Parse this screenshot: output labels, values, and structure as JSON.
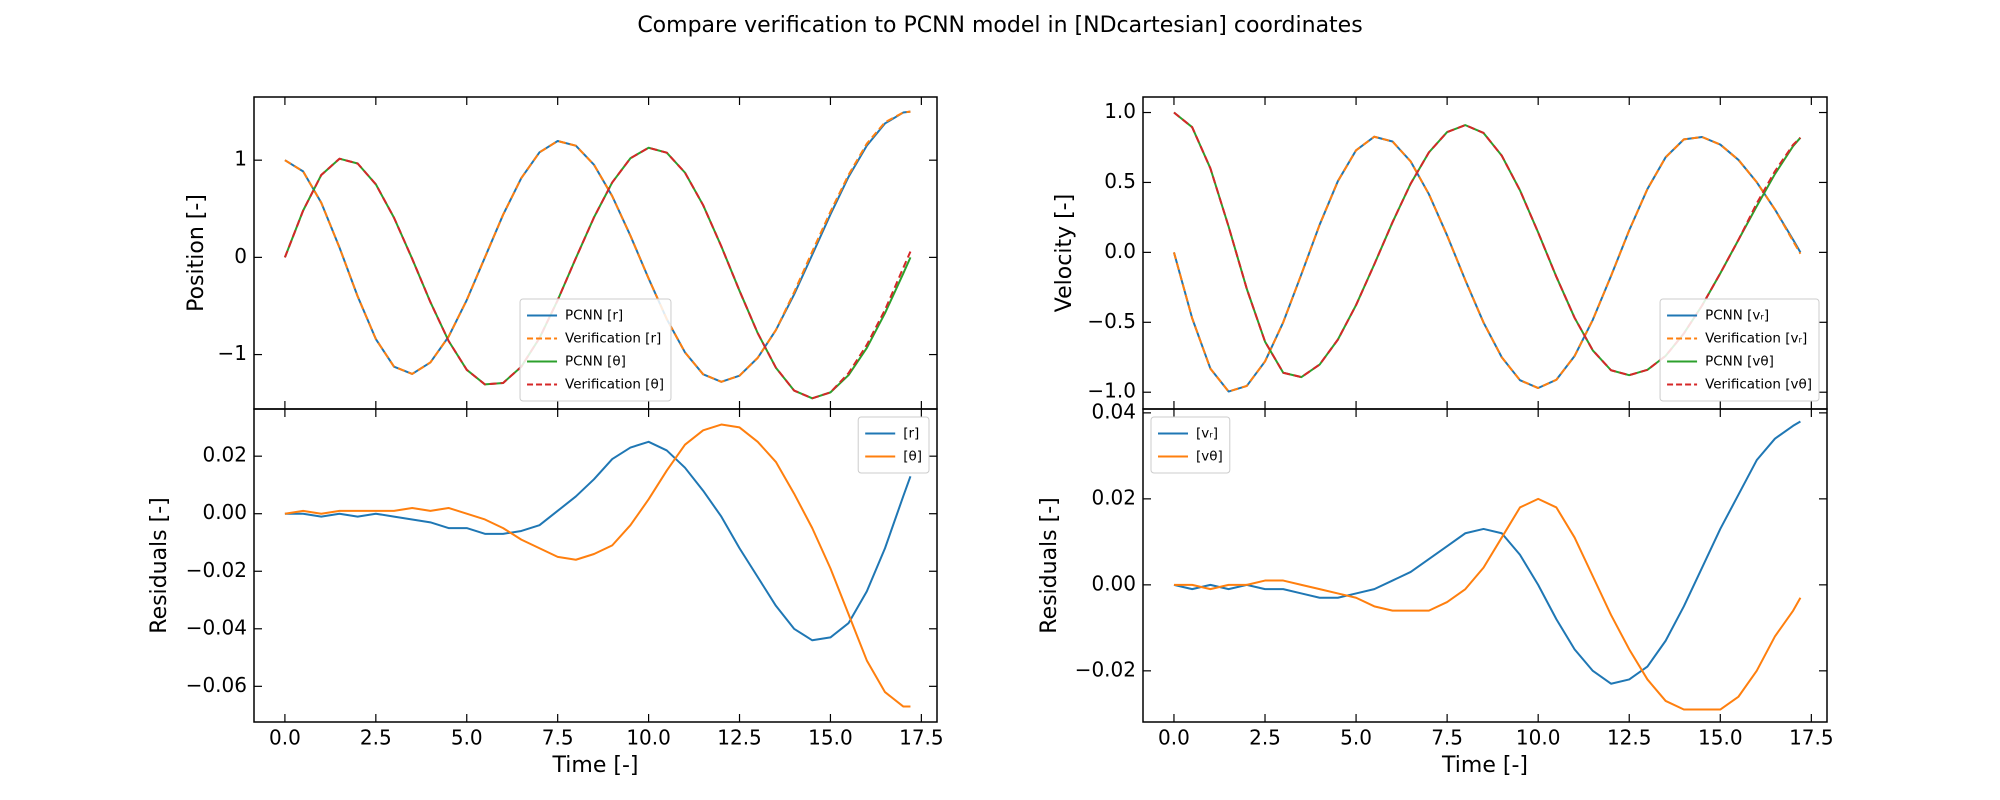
{
  "title": "Compare verification to PCNN model in [NDcartesian] coordinates",
  "chart_data": [
    {
      "type": "line",
      "ylabel": "Position [-]",
      "x": [
        0,
        0.5,
        1,
        1.5,
        2,
        2.5,
        3,
        3.5,
        4,
        4.5,
        5,
        5.5,
        6,
        6.5,
        7,
        7.5,
        8,
        8.5,
        9,
        9.5,
        10,
        10.5,
        11,
        11.5,
        12,
        12.5,
        13,
        13.5,
        14,
        14.5,
        15,
        15.5,
        16,
        16.5,
        17,
        17.2
      ],
      "xlim": [
        -0.85,
        17.93
      ],
      "xticks": [
        0,
        2.5,
        5,
        7.5,
        10,
        12.5,
        15,
        17.5
      ],
      "show_xtick_labels": false,
      "ylim": [
        -1.56,
        1.65
      ],
      "yticks": [
        {
          "value": -1,
          "label": "−1"
        },
        0,
        1
      ],
      "legend": "lower center",
      "series": [
        {
          "name": "PCNN [r]",
          "color": "#1f77b4",
          "linestyle": "solid",
          "values": [
            1.0,
            0.885,
            0.562,
            0.102,
            -0.401,
            -0.84,
            -1.125,
            -1.199,
            -1.081,
            -0.816,
            -0.439,
            0,
            0.439,
            0.816,
            1.081,
            1.197,
            1.149,
            0.952,
            0.63,
            0.223,
            -0.217,
            -0.635,
            -0.977,
            -1.203,
            -1.28,
            -1.217,
            -1.034,
            -0.748,
            -0.383,
            0.027,
            0.442,
            0.83,
            1.15,
            1.378,
            1.49,
            1.5
          ]
        },
        {
          "name": "Verification [r]",
          "color": "#ff7f0e",
          "linestyle": "dashed",
          "values": [
            1.0,
            0.885,
            0.562,
            0.102,
            -0.401,
            -0.84,
            -1.125,
            -1.199,
            -1.081,
            -0.816,
            -0.439,
            0,
            0.439,
            0.816,
            1.081,
            1.197,
            1.149,
            0.952,
            0.63,
            0.223,
            -0.217,
            -0.635,
            -0.977,
            -1.203,
            -1.28,
            -1.217,
            -1.034,
            -0.748,
            -0.36,
            0.06,
            0.47,
            0.85,
            1.17,
            1.39,
            1.49,
            1.5
          ]
        },
        {
          "name": "PCNN [θ]",
          "color": "#2ca02c",
          "linestyle": "solid",
          "values": [
            0,
            0.481,
            0.848,
            1.015,
            0.966,
            0.752,
            0.408,
            -0.015,
            -0.46,
            -0.859,
            -1.157,
            -1.307,
            -1.292,
            -1.125,
            -0.83,
            -0.44,
            -0.008,
            0.413,
            0.771,
            1.02,
            1.128,
            1.077,
            0.872,
            0.537,
            0.113,
            -0.344,
            -0.779,
            -1.135,
            -1.37,
            -1.45,
            -1.389,
            -1.211,
            -0.932,
            -0.574,
            -0.168,
            0
          ]
        },
        {
          "name": "Verification [θ]",
          "color": "#d62728",
          "linestyle": "dashed",
          "values": [
            0,
            0.481,
            0.848,
            1.015,
            0.966,
            0.752,
            0.408,
            -0.015,
            -0.46,
            -0.859,
            -1.157,
            -1.307,
            -1.292,
            -1.125,
            -0.83,
            -0.44,
            -0.008,
            0.413,
            0.771,
            1.02,
            1.128,
            1.077,
            0.872,
            0.537,
            0.113,
            -0.344,
            -0.779,
            -1.135,
            -1.37,
            -1.45,
            -1.389,
            -1.19,
            -0.9,
            -0.54,
            -0.11,
            0.06
          ]
        }
      ]
    },
    {
      "type": "line",
      "ylabel": "Residuals [-]",
      "xlabel": "Time  [-]",
      "x": [
        0,
        0.5,
        1,
        1.5,
        2,
        2.5,
        3,
        3.5,
        4,
        4.5,
        5,
        5.5,
        6,
        6.5,
        7,
        7.5,
        8,
        8.5,
        9,
        9.5,
        10,
        10.5,
        11,
        11.5,
        12,
        12.5,
        13,
        13.5,
        14,
        14.5,
        15,
        15.5,
        16,
        16.5,
        17,
        17.2
      ],
      "xlim": [
        -0.85,
        17.93
      ],
      "xticks": [
        {
          "value": 0,
          "label": "0.0"
        },
        2.5,
        {
          "value": 5,
          "label": "5.0"
        },
        7.5,
        {
          "value": 10,
          "label": "10.0"
        },
        12.5,
        {
          "value": 15,
          "label": "15.0"
        },
        17.5
      ],
      "show_xtick_labels": true,
      "ylim": [
        -0.0724,
        0.0364
      ],
      "yticks": [
        {
          "value": -0.06,
          "label": "−0.06"
        },
        {
          "value": -0.04,
          "label": "−0.04"
        },
        {
          "value": -0.02,
          "label": "−0.02"
        },
        {
          "value": 0,
          "label": "0.00"
        },
        0.02
      ],
      "legend": "upper right",
      "series": [
        {
          "name": "[r]",
          "color": "#1f77b4",
          "linestyle": "solid",
          "values": [
            0,
            0,
            -0.001,
            0,
            -0.001,
            0,
            -0.001,
            -0.002,
            -0.003,
            -0.005,
            -0.005,
            -0.007,
            -0.007,
            -0.006,
            -0.004,
            0.001,
            0.006,
            0.012,
            0.019,
            0.023,
            0.025,
            0.022,
            0.016,
            0.008,
            -0.001,
            -0.012,
            -0.022,
            -0.032,
            -0.04,
            -0.044,
            -0.043,
            -0.038,
            -0.027,
            -0.012,
            0.006,
            0.013
          ]
        },
        {
          "name": "[θ]",
          "color": "#ff7f0e",
          "linestyle": "solid",
          "values": [
            0,
            0.001,
            0,
            0.001,
            0.001,
            0.001,
            0.001,
            0.002,
            0.001,
            0.002,
            0,
            -0.002,
            -0.005,
            -0.009,
            -0.012,
            -0.015,
            -0.016,
            -0.014,
            -0.011,
            -0.004,
            0.005,
            0.015,
            0.024,
            0.029,
            0.031,
            0.03,
            0.025,
            0.018,
            0.007,
            -0.005,
            -0.019,
            -0.035,
            -0.051,
            -0.062,
            -0.067,
            -0.067
          ]
        }
      ]
    },
    {
      "type": "line",
      "ylabel": "Velocity [-]",
      "x": [
        0,
        0.5,
        1,
        1.5,
        2,
        2.5,
        3,
        3.5,
        4,
        4.5,
        5,
        5.5,
        6,
        6.5,
        7,
        7.5,
        8,
        8.5,
        9,
        9.5,
        10,
        10.5,
        11,
        11.5,
        12,
        12.5,
        13,
        13.5,
        14,
        14.5,
        15,
        15.5,
        16,
        16.5,
        17,
        17.2
      ],
      "xlim": [
        -0.85,
        17.93
      ],
      "xticks": [
        0,
        2.5,
        5,
        7.5,
        10,
        12.5,
        15,
        17.5
      ],
      "show_xtick_labels": false,
      "ylim": [
        -1.12,
        1.111
      ],
      "yticks": [
        {
          "value": -1,
          "label": "−1.0"
        },
        {
          "value": -0.5,
          "label": "−0.5"
        },
        {
          "value": 0,
          "label": "0.0"
        },
        0.5,
        {
          "value": 1,
          "label": "1.0"
        }
      ],
      "legend": "lower right",
      "series": [
        {
          "name": "PCNN [vᵣ]",
          "color": "#1f77b4",
          "linestyle": "solid",
          "values": [
            0,
            -0.471,
            -0.831,
            -0.995,
            -0.955,
            -0.78,
            -0.5,
            -0.156,
            0.198,
            0.509,
            0.73,
            0.827,
            0.793,
            0.65,
            0.416,
            0.121,
            -0.199,
            -0.502,
            -0.75,
            -0.914,
            -0.97,
            -0.911,
            -0.741,
            -0.482,
            -0.169,
            0.158,
            0.453,
            0.68,
            0.808,
            0.825,
            0.771,
            0.661,
            0.502,
            0.307,
            0.09,
            0
          ]
        },
        {
          "name": "Verification [vᵣ]",
          "color": "#ff7f0e",
          "linestyle": "dashed",
          "values": [
            0,
            -0.471,
            -0.831,
            -0.995,
            -0.955,
            -0.78,
            -0.5,
            -0.156,
            0.198,
            0.509,
            0.73,
            0.827,
            0.793,
            0.65,
            0.416,
            0.121,
            -0.199,
            -0.502,
            -0.75,
            -0.914,
            -0.97,
            -0.911,
            -0.741,
            -0.482,
            -0.169,
            0.158,
            0.453,
            0.68,
            0.808,
            0.825,
            0.771,
            0.661,
            0.502,
            0.307,
            0.08,
            -0.01
          ]
        },
        {
          "name": "PCNN [vθ]",
          "color": "#2ca02c",
          "linestyle": "solid",
          "values": [
            1.0,
            0.895,
            0.601,
            0.185,
            -0.261,
            -0.638,
            -0.861,
            -0.892,
            -0.802,
            -0.624,
            -0.377,
            -0.086,
            0.215,
            0.492,
            0.715,
            0.86,
            0.91,
            0.854,
            0.692,
            0.444,
            0.142,
            -0.175,
            -0.468,
            -0.701,
            -0.843,
            -0.878,
            -0.84,
            -0.74,
            -0.58,
            -0.38,
            -0.15,
            0.09,
            0.33,
            0.56,
            0.76,
            0.82
          ]
        },
        {
          "name": "Verification [vθ]",
          "color": "#d62728",
          "linestyle": "dashed",
          "values": [
            1.0,
            0.895,
            0.601,
            0.185,
            -0.261,
            -0.638,
            -0.861,
            -0.892,
            -0.802,
            -0.624,
            -0.377,
            -0.086,
            0.215,
            0.492,
            0.715,
            0.86,
            0.91,
            0.854,
            0.692,
            0.444,
            0.142,
            -0.175,
            -0.468,
            -0.701,
            -0.843,
            -0.878,
            -0.84,
            -0.74,
            -0.58,
            -0.38,
            -0.15,
            0.09,
            0.35,
            0.58,
            0.77,
            0.82
          ]
        }
      ]
    },
    {
      "type": "line",
      "ylabel": "Residuals [-]",
      "xlabel": "Time [-]",
      "x": [
        0,
        0.5,
        1,
        1.5,
        2,
        2.5,
        3,
        3.5,
        4,
        4.5,
        5,
        5.5,
        6,
        6.5,
        7,
        7.5,
        8,
        8.5,
        9,
        9.5,
        10,
        10.5,
        11,
        11.5,
        12,
        12.5,
        13,
        13.5,
        14,
        14.5,
        15,
        15.5,
        16,
        16.5,
        17,
        17.2
      ],
      "xlim": [
        -0.85,
        17.93
      ],
      "xticks": [
        {
          "value": 0,
          "label": "0.0"
        },
        2.5,
        {
          "value": 5,
          "label": "5.0"
        },
        7.5,
        {
          "value": 10,
          "label": "10.0"
        },
        12.5,
        {
          "value": 15,
          "label": "15.0"
        },
        17.5
      ],
      "show_xtick_labels": true,
      "ylim": [
        -0.0319,
        0.0409
      ],
      "yticks": [
        {
          "value": -0.02,
          "label": "−0.02"
        },
        {
          "value": 0,
          "label": "0.00"
        },
        0.02,
        0.04
      ],
      "legend": "upper left",
      "series": [
        {
          "name": "[vᵣ]",
          "color": "#1f77b4",
          "linestyle": "solid",
          "values": [
            0,
            -0.001,
            0,
            -0.001,
            0,
            -0.001,
            -0.001,
            -0.002,
            -0.003,
            -0.003,
            -0.002,
            -0.001,
            0.001,
            0.003,
            0.006,
            0.009,
            0.012,
            0.013,
            0.012,
            0.007,
            0,
            -0.008,
            -0.015,
            -0.02,
            -0.023,
            -0.022,
            -0.019,
            -0.013,
            -0.005,
            0.004,
            0.013,
            0.021,
            0.029,
            0.034,
            0.037,
            0.038
          ]
        },
        {
          "name": "[vθ]",
          "color": "#ff7f0e",
          "linestyle": "solid",
          "values": [
            0,
            0,
            -0.001,
            0,
            0,
            0.001,
            0.001,
            0,
            -0.001,
            -0.002,
            -0.003,
            -0.005,
            -0.006,
            -0.006,
            -0.006,
            -0.004,
            -0.001,
            0.004,
            0.011,
            0.018,
            0.02,
            0.018,
            0.011,
            0.002,
            -0.007,
            -0.015,
            -0.022,
            -0.027,
            -0.029,
            -0.029,
            -0.029,
            -0.026,
            -0.02,
            -0.012,
            -0.006,
            -0.003
          ]
        }
      ]
    }
  ]
}
